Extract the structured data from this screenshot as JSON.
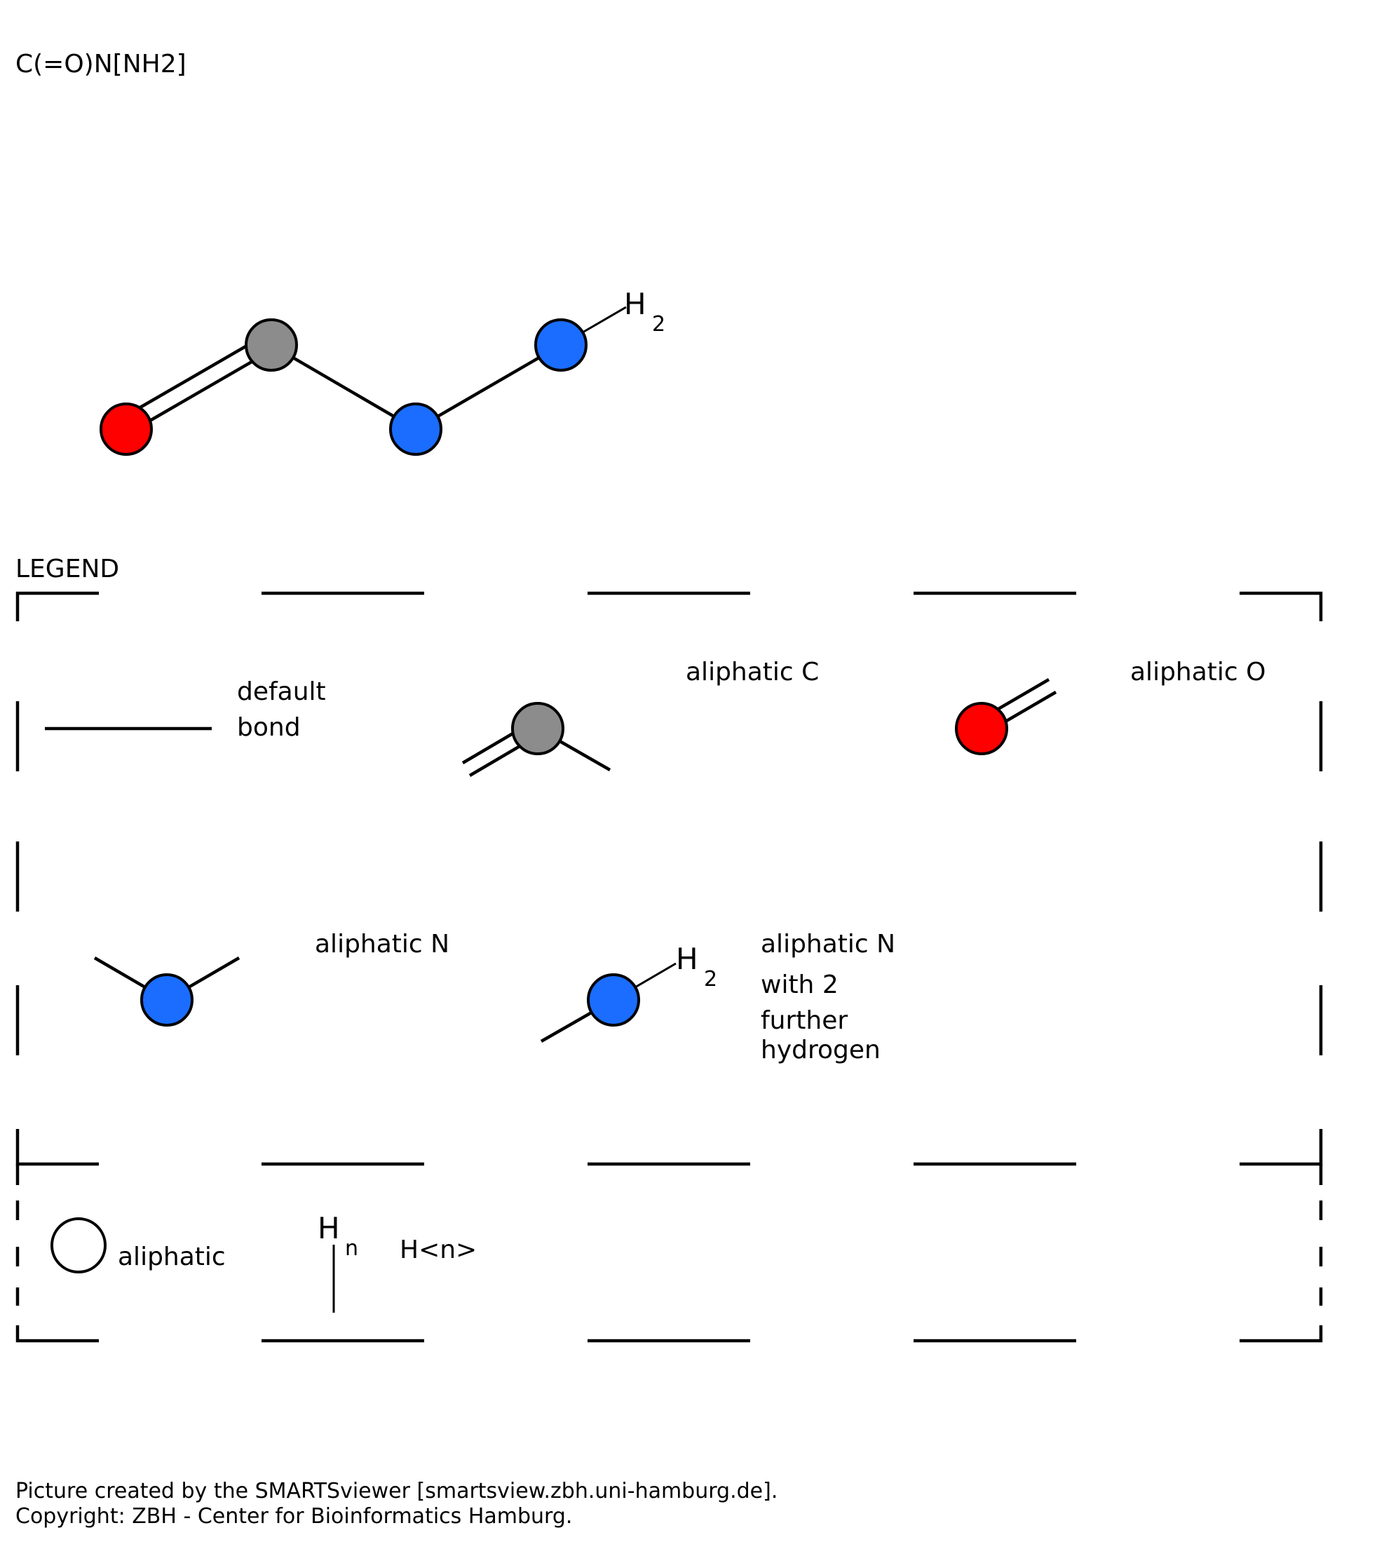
{
  "smarts": "C(=O)N[NH2]",
  "molecule": {
    "hydrogen_label": "H",
    "hydrogen_count": "2"
  },
  "legend": {
    "title": "LEGEND",
    "default_bond": [
      "default",
      "bond"
    ],
    "aliphatic_c": "aliphatic C",
    "aliphatic_o": "aliphatic O",
    "aliphatic_n": "aliphatic N",
    "aliphatic_nh2": [
      "aliphatic N",
      "with 2",
      "further",
      "hydrogen"
    ],
    "nh2_h_label": "H",
    "nh2_h_count": "2",
    "aliphatic_generic": "aliphatic",
    "hn_symbol": "H",
    "hn_sub": "n",
    "hn_text": "H<n>"
  },
  "colors": {
    "carbon": "#8c8c8c",
    "oxygen": "#ff0000",
    "nitrogen": "#1a6dff"
  },
  "footer": {
    "line1": "Picture created by the SMARTSviewer [smartsview.zbh.uni-hamburg.de].",
    "line2": "Copyright: ZBH - Center for Bioinformatics Hamburg."
  }
}
